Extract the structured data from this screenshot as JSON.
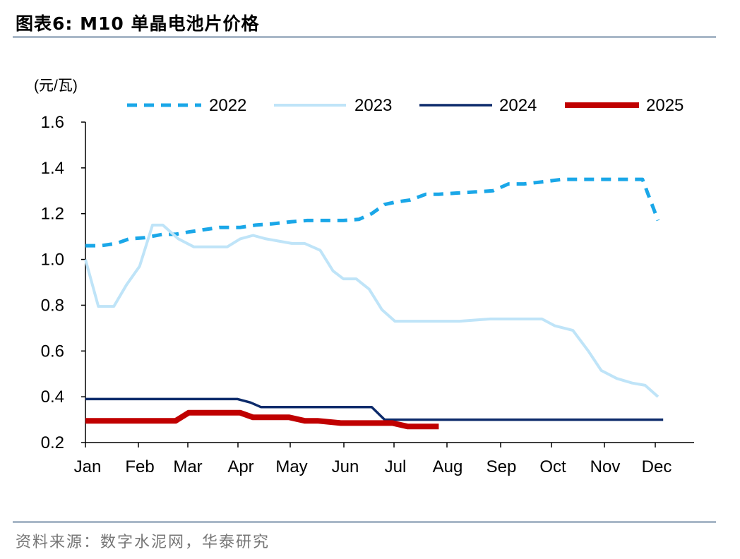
{
  "title": "图表6:   M10 单晶电池片价格",
  "source": "资料来源：数字水泥网，华泰研究",
  "colors": {
    "s2022": "#1aa7e8",
    "s2023": "#bfe4f8",
    "s2024": "#0d2b6b",
    "s2025": "#c00000",
    "axis": "#000000",
    "rule": "#a9b8c8"
  },
  "chart_data": {
    "type": "line",
    "ylabel": "(元/瓦)",
    "ylim": [
      0.2,
      1.6
    ],
    "yticks": [
      "0.2",
      "0.4",
      "0.6",
      "0.8",
      "1.0",
      "1.2",
      "1.4",
      "1.6"
    ],
    "months": [
      "Jan",
      "Feb",
      "Mar",
      "Apr",
      "May",
      "Jun",
      "Jul",
      "Aug",
      "Sep",
      "Oct",
      "Nov",
      "Dec"
    ],
    "grid": false,
    "legend_position": "top",
    "series": [
      {
        "name": "2022",
        "style": "dashed",
        "x": [
          1.0,
          1.3,
          1.6,
          1.85,
          2.15,
          2.5,
          2.75,
          3.0,
          3.3,
          3.6,
          4.0,
          4.3,
          4.6,
          5.0,
          5.3,
          5.6,
          6.0,
          6.3,
          6.55,
          6.8,
          7.0,
          7.3,
          7.6,
          7.85,
          8.2,
          8.55,
          8.9,
          9.2,
          9.5,
          9.9,
          10.25,
          10.55,
          10.9,
          11.2,
          11.55,
          11.8,
          12.1
        ],
        "y": [
          1.06,
          1.06,
          1.07,
          1.09,
          1.095,
          1.11,
          1.11,
          1.12,
          1.13,
          1.14,
          1.14,
          1.15,
          1.155,
          1.165,
          1.17,
          1.17,
          1.17,
          1.175,
          1.2,
          1.24,
          1.25,
          1.26,
          1.285,
          1.285,
          1.29,
          1.295,
          1.3,
          1.33,
          1.33,
          1.34,
          1.35,
          1.35,
          1.35,
          1.35,
          1.35,
          1.35,
          1.17
        ]
      },
      {
        "name": "2023",
        "style": "solid",
        "x": [
          1.0,
          1.25,
          1.55,
          1.8,
          2.05,
          2.3,
          2.5,
          2.8,
          3.1,
          3.45,
          3.75,
          4.0,
          4.25,
          4.5,
          4.75,
          5.0,
          5.25,
          5.55,
          5.8,
          6.0,
          6.25,
          6.5,
          6.75,
          7.0,
          7.25,
          7.5,
          7.75,
          8.0,
          8.25,
          8.55,
          8.85,
          9.25,
          9.55,
          9.85,
          10.1,
          10.45,
          10.75,
          11.0,
          11.3,
          11.6,
          11.85,
          12.1
        ],
        "y": [
          1.0,
          0.795,
          0.795,
          0.89,
          0.97,
          1.15,
          1.15,
          1.09,
          1.055,
          1.055,
          1.055,
          1.09,
          1.105,
          1.09,
          1.08,
          1.07,
          1.07,
          1.04,
          0.95,
          0.915,
          0.915,
          0.87,
          0.78,
          0.73,
          0.73,
          0.73,
          0.73,
          0.73,
          0.73,
          0.735,
          0.74,
          0.74,
          0.74,
          0.74,
          0.71,
          0.69,
          0.6,
          0.515,
          0.48,
          0.46,
          0.45,
          0.4
        ]
      },
      {
        "name": "2024",
        "style": "solid",
        "x": [
          1.0,
          1.5,
          2.0,
          2.5,
          3.0,
          3.5,
          3.95,
          4.2,
          4.4,
          4.8,
          5.3,
          5.8,
          6.3,
          6.55,
          6.8,
          7.5,
          8.5,
          9.5,
          10.5,
          11.5,
          12.2
        ],
        "y": [
          0.39,
          0.39,
          0.39,
          0.39,
          0.39,
          0.39,
          0.39,
          0.375,
          0.355,
          0.355,
          0.355,
          0.355,
          0.355,
          0.355,
          0.3,
          0.3,
          0.3,
          0.3,
          0.3,
          0.3,
          0.3
        ]
      },
      {
        "name": "2025",
        "style": "solid",
        "x": [
          1.0,
          1.5,
          2.0,
          2.5,
          2.75,
          3.0,
          3.5,
          4.0,
          4.25,
          4.5,
          4.95,
          5.25,
          5.5,
          5.95,
          6.25,
          6.55,
          6.95,
          7.25,
          7.5,
          7.85
        ],
        "y": [
          0.295,
          0.295,
          0.295,
          0.295,
          0.295,
          0.33,
          0.33,
          0.33,
          0.31,
          0.31,
          0.31,
          0.295,
          0.295,
          0.285,
          0.285,
          0.285,
          0.285,
          0.27,
          0.27,
          0.27
        ]
      }
    ]
  }
}
